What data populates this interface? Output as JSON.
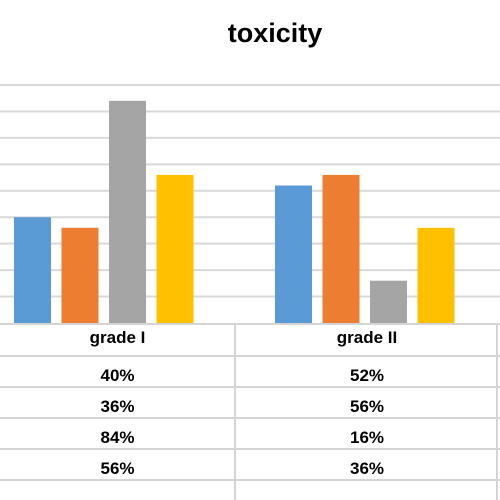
{
  "chart_data": {
    "type": "bar",
    "title": "toxicity",
    "categories": [
      "grade I",
      "grade II"
    ],
    "series": [
      {
        "values": [
          40,
          52
        ],
        "labels": [
          "40%",
          "52%"
        ],
        "color": "#5b9bd5"
      },
      {
        "values": [
          36,
          56
        ],
        "labels": [
          "36%",
          "56%"
        ],
        "color": "#ed7d31"
      },
      {
        "values": [
          84,
          16
        ],
        "labels": [
          "84%",
          "16%"
        ],
        "color": "#a5a5a5"
      },
      {
        "values": [
          56,
          36
        ],
        "labels": [
          "56%",
          "36%"
        ],
        "color": "#ffc000"
      }
    ],
    "ylim": [
      0,
      90
    ],
    "grid": true,
    "legend": "none",
    "data_table": true
  }
}
